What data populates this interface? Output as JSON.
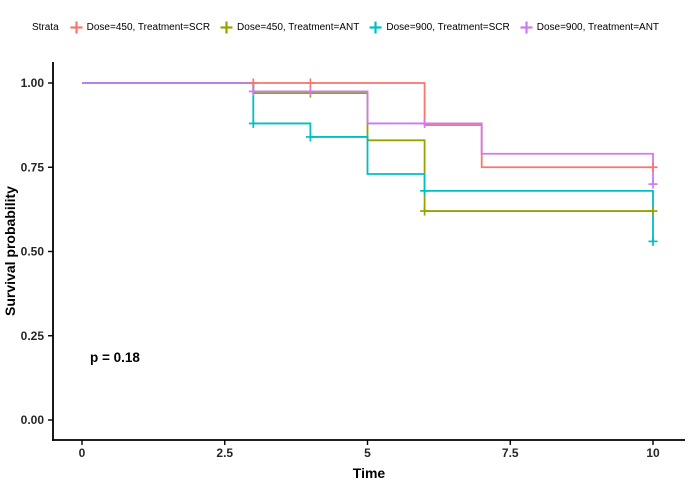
{
  "legend": {
    "title": "Strata"
  },
  "chart_data": {
    "type": "line",
    "subtype": "kaplan-meier-step-curves",
    "title": "",
    "xlabel": "Time",
    "ylabel": "Survival probability",
    "p_value_annotation": "p = 0.18",
    "grid": false,
    "legend_position": "top",
    "xlim": [
      -0.5,
      10.5
    ],
    "ylim": [
      -0.06,
      1.06
    ],
    "x_ticks": [
      {
        "value": 0,
        "label": "0"
      },
      {
        "value": 2.5,
        "label": "2.5"
      },
      {
        "value": 5,
        "label": "5"
      },
      {
        "value": 7.5,
        "label": "7.5"
      },
      {
        "value": 10,
        "label": "10"
      }
    ],
    "y_ticks": [
      {
        "value": 0.0,
        "label": "0.00"
      },
      {
        "value": 0.25,
        "label": "0.25"
      },
      {
        "value": 0.5,
        "label": "0.50"
      },
      {
        "value": 0.75,
        "label": "0.75"
      },
      {
        "value": 1.0,
        "label": "1.00"
      }
    ],
    "series": [
      {
        "name": "Dose=450, Treatment=SCR",
        "color": "#F8766D",
        "end_time": 10,
        "steps": [
          [
            0,
            1.0
          ],
          [
            6,
            0.875
          ],
          [
            7,
            0.75
          ]
        ],
        "censors": [
          [
            3,
            1.0
          ],
          [
            4,
            1.0
          ],
          [
            10,
            0.75
          ]
        ]
      },
      {
        "name": "Dose=450, Treatment=ANT",
        "color": "#96A400",
        "end_time": 10,
        "steps": [
          [
            0,
            1.0
          ],
          [
            3,
            0.97
          ],
          [
            5,
            0.83
          ],
          [
            6,
            0.62
          ]
        ],
        "censors": [
          [
            4,
            0.97
          ],
          [
            6,
            0.62
          ],
          [
            10,
            0.62
          ]
        ]
      },
      {
        "name": "Dose=900, Treatment=SCR",
        "color": "#00BFC4",
        "end_time": 10,
        "steps": [
          [
            0,
            1.0
          ],
          [
            3,
            0.88
          ],
          [
            4,
            0.84
          ],
          [
            5,
            0.73
          ],
          [
            6,
            0.68
          ],
          [
            10,
            0.53
          ]
        ],
        "censors": [
          [
            3,
            0.88
          ],
          [
            4,
            0.84
          ],
          [
            6,
            0.68
          ],
          [
            10,
            0.53
          ]
        ]
      },
      {
        "name": "Dose=900, Treatment=ANT",
        "color": "#CB7BF0",
        "end_time": 10,
        "steps": [
          [
            0,
            1.0
          ],
          [
            3,
            0.975
          ],
          [
            5,
            0.88
          ],
          [
            7,
            0.79
          ],
          [
            10,
            0.7
          ]
        ],
        "censors": [
          [
            3,
            0.975
          ],
          [
            4,
            0.975
          ],
          [
            6,
            0.88
          ],
          [
            10,
            0.7
          ]
        ]
      }
    ]
  }
}
